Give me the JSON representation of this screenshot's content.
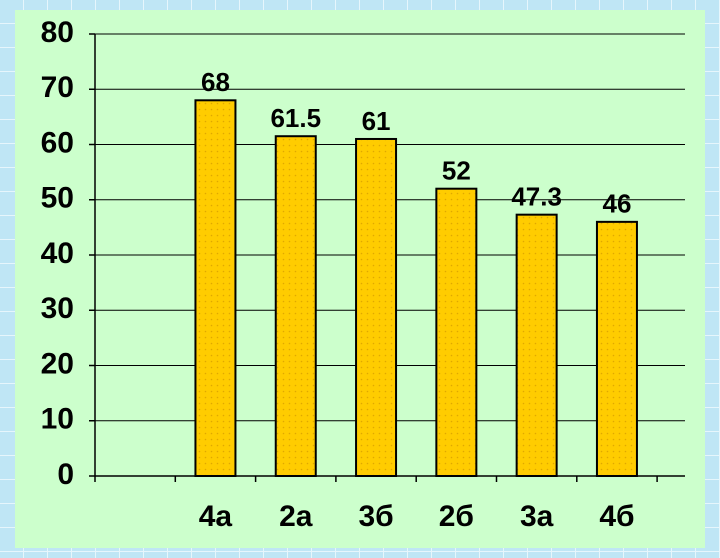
{
  "chart_data": {
    "type": "bar",
    "categories": [
      null,
      "4а",
      "2а",
      "3б",
      "2б",
      "3а",
      "4б"
    ],
    "values": [
      null,
      68,
      61.5,
      61,
      52,
      47.3,
      46
    ],
    "color": "#ffcc00",
    "ylim": [
      0,
      80
    ],
    "yticks": [
      0,
      10,
      20,
      30,
      40,
      50,
      60,
      70,
      80
    ],
    "grid": true
  }
}
